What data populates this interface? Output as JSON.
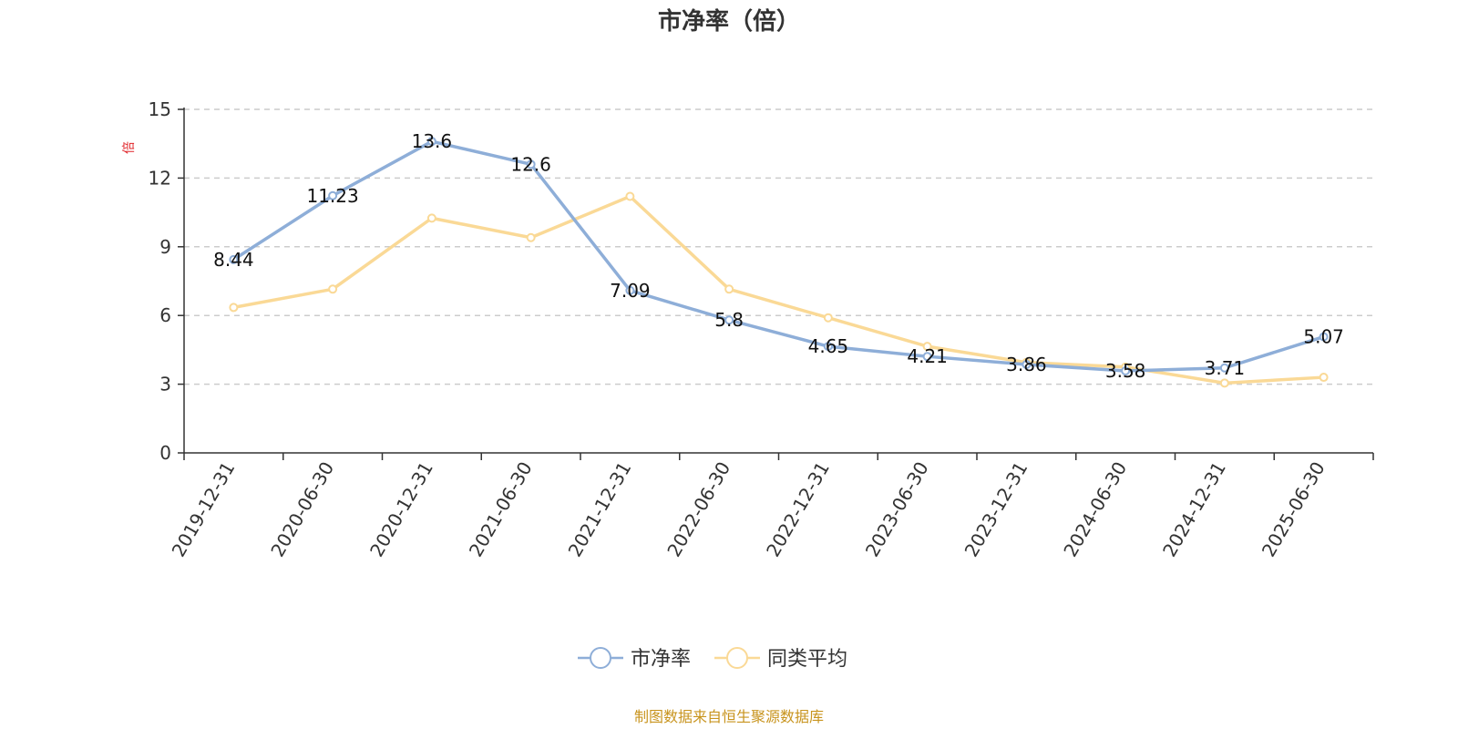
{
  "chart_data": {
    "type": "line",
    "title": "市净率（倍）",
    "ylabel": "倍",
    "ylim": [
      0,
      15
    ],
    "yticks": [
      0,
      3,
      6,
      9,
      12,
      15
    ],
    "grid": true,
    "legend_position": "bottom-center",
    "categories": [
      "2019-12-31",
      "2020-06-30",
      "2020-12-31",
      "2021-06-30",
      "2021-12-31",
      "2022-06-30",
      "2022-12-31",
      "2023-06-30",
      "2023-12-31",
      "2024-06-30",
      "2024-12-31",
      "2025-06-30"
    ],
    "series": [
      {
        "name": "市净率",
        "color": "#8eaed8",
        "values": [
          8.44,
          11.23,
          13.6,
          12.6,
          7.09,
          5.8,
          4.65,
          4.21,
          3.86,
          3.58,
          3.71,
          5.07
        ],
        "labels": [
          "8.44",
          "11.23",
          "13.6",
          "12.6",
          "7.09",
          "5.8",
          "4.65",
          "4.21",
          "3.86",
          "3.58",
          "3.71",
          "5.07"
        ],
        "show_labels": true
      },
      {
        "name": "同类平均",
        "color": "#fad996",
        "values": [
          6.35,
          7.15,
          10.25,
          9.4,
          11.2,
          7.15,
          5.9,
          4.65,
          3.95,
          3.75,
          3.05,
          3.3
        ],
        "show_labels": false
      }
    ]
  },
  "source_note": "制图数据来自恒生聚源数据库"
}
